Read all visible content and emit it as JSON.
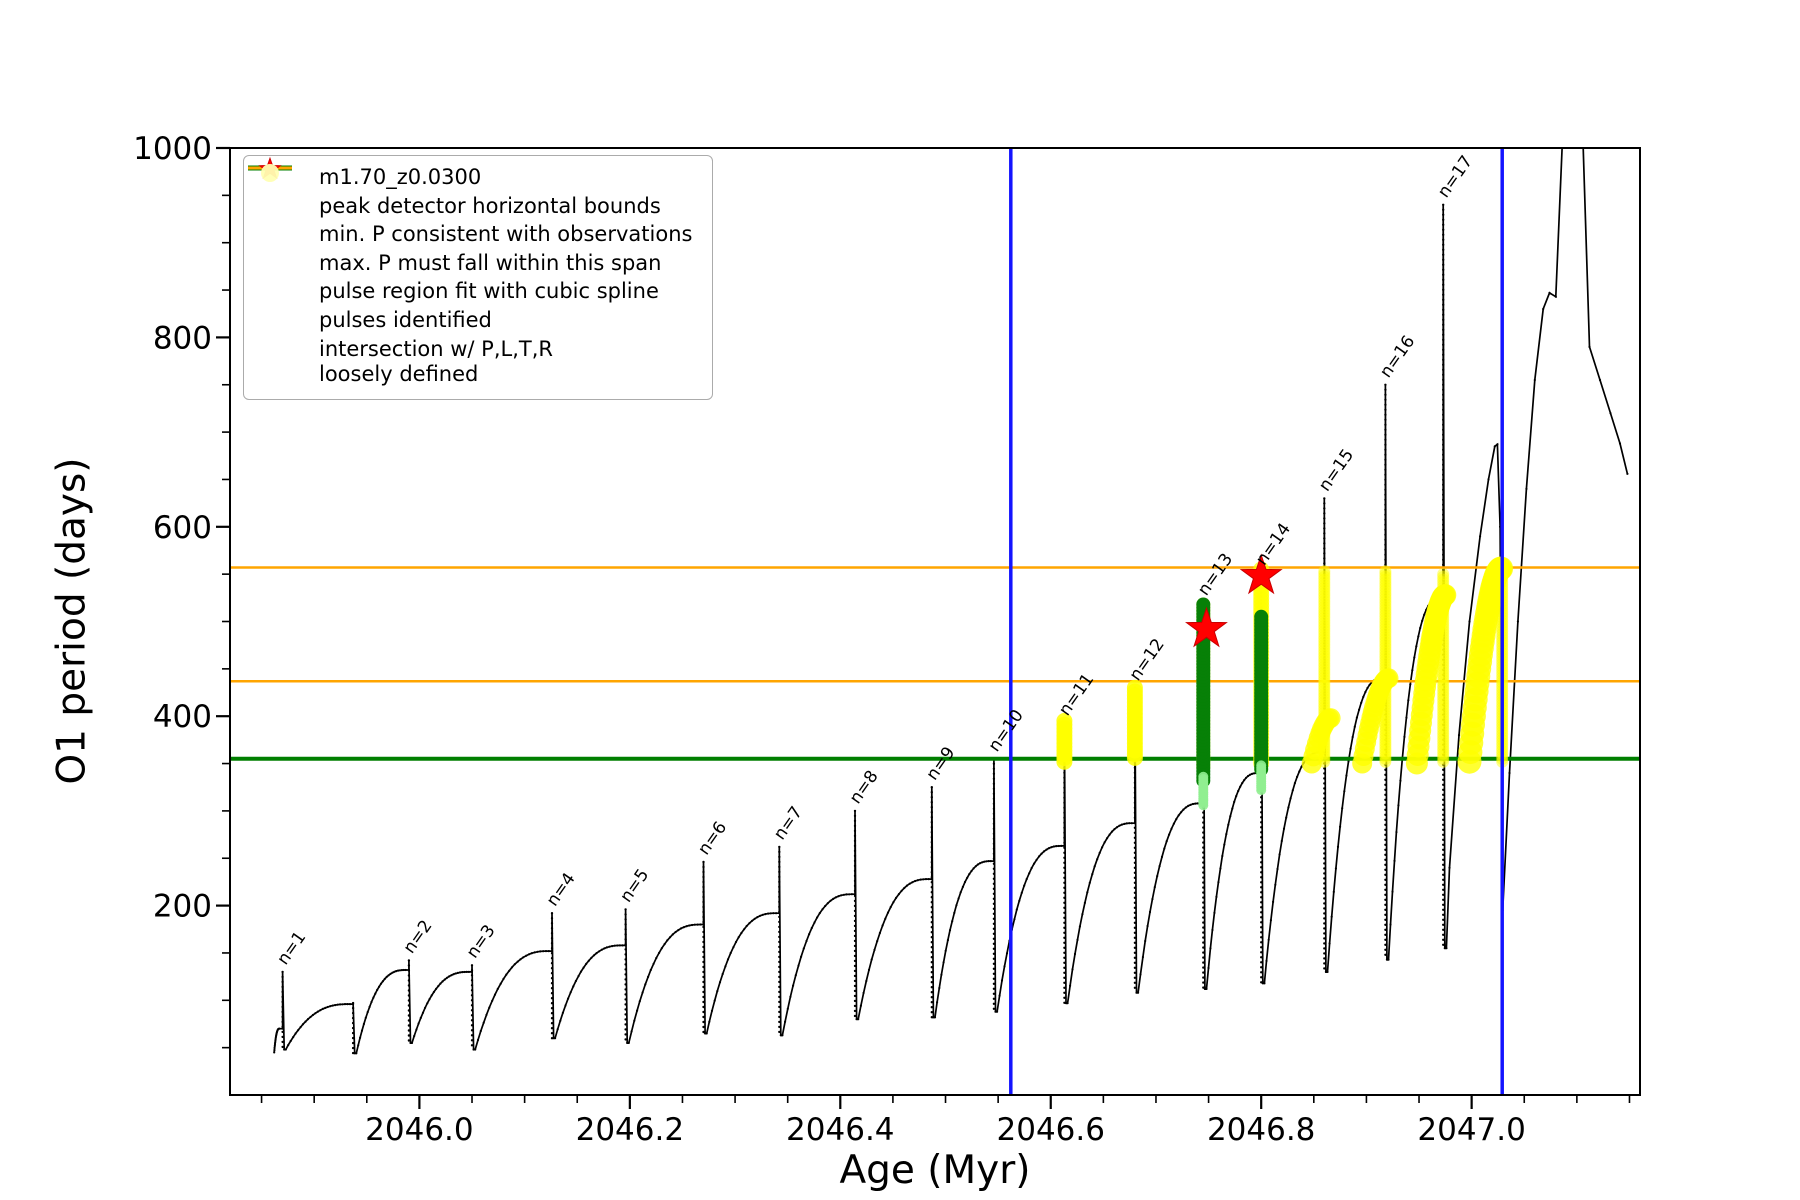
{
  "figure": {
    "xlabel": "Age (Myr)",
    "ylabel": "O1 period (days)"
  },
  "legend": {
    "items": [
      {
        "label": "m1.70_z0.0300",
        "marker": "line-with-dot",
        "color": "#000000"
      },
      {
        "label": "peak detector horizontal bounds",
        "marker": "thick-line",
        "color": "#1414ff"
      },
      {
        "label": "min. P consistent with observations",
        "marker": "thick-line",
        "color": "#007f00"
      },
      {
        "label": "max. P must fall within this span",
        "marker": "line",
        "color": "#ffa500"
      },
      {
        "label": "pulse region fit with cubic spline",
        "marker": "small-dot",
        "color": "#90ee90"
      },
      {
        "label": "pulses identified",
        "marker": "star",
        "color": "#ff0000"
      },
      {
        "label": "intersection w/ P,L,T,R",
        "label2": "loosely defined",
        "marker": "big-dot",
        "color": "#ffffb3"
      }
    ]
  },
  "colors": {
    "blue": "#1414ff",
    "green": "#007f00",
    "orange": "#ffa500",
    "red": "#ff0000",
    "light_green": "#90ee90",
    "yellow": "#ffff00",
    "pale_yellow": "#ffffb3",
    "black": "#000000"
  },
  "chart_data": {
    "type": "line",
    "title": "",
    "xlabel": "Age (Myr)",
    "ylabel": "O1 period (days)",
    "xlim": [
      2045.82,
      2047.16
    ],
    "ylim": [
      0,
      1000
    ],
    "grid": false,
    "legend_position": "upper-left",
    "x_axis": {
      "major": [
        2046.0,
        2046.2,
        2046.4,
        2046.6,
        2046.8,
        2047.0
      ],
      "labels": [
        "2046.0",
        "2046.2",
        "2046.4",
        "2046.6",
        "2046.8",
        "2047.0"
      ],
      "minor_start": 2045.85,
      "minor_step": 0.05
    },
    "y_axis": {
      "major": [
        200,
        400,
        600,
        800,
        1000
      ],
      "labels": [
        "200",
        "400",
        "600",
        "800",
        "1000"
      ],
      "minor_step": 50
    },
    "series": {
      "name": "m1.70_z0.0300",
      "color": "#000000",
      "start": [
        2045.862,
        45
      ],
      "cycles": [
        {
          "n": 1,
          "x": 2045.87,
          "shoulder": 70,
          "peak": 130,
          "min": 48
        },
        {
          "n": null,
          "x": 2045.937,
          "shoulder": 96,
          "peak": 97,
          "min": 44
        },
        {
          "n": 2,
          "x": 2045.99,
          "shoulder": 132,
          "peak": 142,
          "min": 55
        },
        {
          "n": 3,
          "x": 2046.05,
          "shoulder": 130,
          "peak": 137,
          "min": 48
        },
        {
          "n": 4,
          "x": 2046.126,
          "shoulder": 152,
          "peak": 192,
          "min": 60
        },
        {
          "n": 5,
          "x": 2046.196,
          "shoulder": 158,
          "peak": 196,
          "min": 55
        },
        {
          "n": 6,
          "x": 2046.27,
          "shoulder": 180,
          "peak": 246,
          "min": 65
        },
        {
          "n": 7,
          "x": 2046.342,
          "shoulder": 192,
          "peak": 262,
          "min": 63
        },
        {
          "n": 8,
          "x": 2046.414,
          "shoulder": 212,
          "peak": 300,
          "min": 80
        },
        {
          "n": 9,
          "x": 2046.487,
          "shoulder": 228,
          "peak": 325,
          "min": 82
        },
        {
          "n": 10,
          "x": 2046.546,
          "shoulder": 247,
          "peak": 355,
          "min": 88
        },
        {
          "n": 11,
          "x": 2046.613,
          "shoulder": 263,
          "peak": 393,
          "min": 97
        },
        {
          "n": 12,
          "x": 2046.68,
          "shoulder": 287,
          "peak": 430,
          "min": 108
        },
        {
          "n": 13,
          "x": 2046.745,
          "shoulder": 308,
          "peak": 520,
          "min": 112
        },
        {
          "n": 14,
          "x": 2046.8,
          "shoulder": 340,
          "peak": 552,
          "min": 118
        },
        {
          "n": 15,
          "x": 2046.86,
          "shoulder": 362,
          "peak": 630,
          "min": 130
        },
        {
          "n": 16,
          "x": 2046.918,
          "shoulder": 440,
          "peak": 750,
          "min": 143
        },
        {
          "n": 17,
          "x": 2046.973,
          "shoulder": 525,
          "peak": 940,
          "min": 155
        }
      ],
      "tail": [
        [
          2046.979,
          240
        ],
        [
          2046.988,
          380
        ],
        [
          2046.998,
          500
        ],
        [
          2047.008,
          590
        ],
        [
          2047.016,
          650
        ],
        [
          2047.022,
          685
        ],
        [
          2047.0245,
          687
        ],
        [
          2047.027,
          600
        ],
        [
          2047.0295,
          195
        ],
        [
          2047.036,
          340
        ],
        [
          2047.044,
          500
        ],
        [
          2047.052,
          640
        ],
        [
          2047.06,
          755
        ],
        [
          2047.068,
          830
        ],
        [
          2047.074,
          847
        ],
        [
          2047.08,
          843
        ],
        [
          2047.086,
          1000
        ],
        [
          2047.106,
          1000
        ],
        [
          2047.112,
          790
        ],
        [
          2047.122,
          755
        ],
        [
          2047.132,
          720
        ],
        [
          2047.141,
          688
        ],
        [
          2047.148,
          656
        ]
      ]
    },
    "annotations": [
      {
        "label": "n=1",
        "x": 2045.87,
        "y": 130
      },
      {
        "label": "n=2",
        "x": 2045.99,
        "y": 142
      },
      {
        "label": "n=3",
        "x": 2046.05,
        "y": 137
      },
      {
        "label": "n=4",
        "x": 2046.126,
        "y": 192
      },
      {
        "label": "n=5",
        "x": 2046.196,
        "y": 196
      },
      {
        "label": "n=6",
        "x": 2046.27,
        "y": 246
      },
      {
        "label": "n=7",
        "x": 2046.342,
        "y": 262
      },
      {
        "label": "n=8",
        "x": 2046.414,
        "y": 300
      },
      {
        "label": "n=9",
        "x": 2046.487,
        "y": 325
      },
      {
        "label": "n=10",
        "x": 2046.546,
        "y": 355
      },
      {
        "label": "n=11",
        "x": 2046.613,
        "y": 393
      },
      {
        "label": "n=12",
        "x": 2046.68,
        "y": 430
      },
      {
        "label": "n=13",
        "x": 2046.745,
        "y": 520
      },
      {
        "label": "n=14",
        "x": 2046.8,
        "y": 552
      },
      {
        "label": "n=15",
        "x": 2046.86,
        "y": 630
      },
      {
        "label": "n=16",
        "x": 2046.918,
        "y": 750
      },
      {
        "label": "n=17",
        "x": 2046.973,
        "y": 940
      }
    ],
    "vlines": {
      "label": "peak detector horizontal bounds",
      "color": "#1414ff",
      "x": [
        2046.562,
        2047.029
      ]
    },
    "hlines": [
      {
        "label": "min. P consistent with observations",
        "color": "#007f00",
        "y": [
          355
        ],
        "width": 4
      },
      {
        "label": "max. P must fall within this span",
        "color": "#ffa500",
        "y": [
          437,
          557
        ],
        "width": 2.5
      }
    ],
    "spline_fit": {
      "label": "pulse region fit with cubic spline",
      "clusters": [
        {
          "x": 2046.745,
          "y1": 332,
          "y2": 518,
          "r": 7,
          "color": "#078007",
          "opacity": 1
        },
        {
          "x": 2046.8,
          "y1": 344,
          "y2": 505,
          "r": 7,
          "color": "#078007",
          "opacity": 1
        },
        {
          "x": 2046.745,
          "y1": 306,
          "y2": 336,
          "r": 5,
          "color": "#90ee90",
          "opacity": 0.9
        },
        {
          "x": 2046.8,
          "y1": 322,
          "y2": 348,
          "r": 5,
          "color": "#90ee90",
          "opacity": 0.9
        }
      ]
    },
    "pulses_identified": {
      "label": "pulses identified",
      "color": "#ff0000",
      "points": [
        {
          "x": 2046.748,
          "y": 492
        },
        {
          "x": 2046.8,
          "y": 548
        }
      ]
    },
    "intersections": {
      "label": "intersection w/ P,L,T,R loosely defined",
      "color": "#ffff00",
      "streaks": [
        {
          "x": 2046.613,
          "y1": 352,
          "y2": 395,
          "r": 8,
          "opacity": 0.85
        },
        {
          "x": 2046.68,
          "y1": 356,
          "y2": 430,
          "r": 8,
          "opacity": 0.85
        },
        {
          "x": 2046.745,
          "y1": 346,
          "y2": 518,
          "r": 7,
          "opacity": 0.7
        },
        {
          "x": 2046.8,
          "y1": 350,
          "y2": 555,
          "r": 8,
          "opacity": 0.7
        },
        {
          "x": 2046.86,
          "y1": 352,
          "y2": 553,
          "r": 6,
          "opacity": 0.5
        },
        {
          "x": 2046.918,
          "y1": 352,
          "y2": 553,
          "r": 6,
          "opacity": 0.5
        },
        {
          "x": 2046.973,
          "y1": 352,
          "y2": 550,
          "r": 6,
          "opacity": 0.45
        },
        {
          "x": 2047.029,
          "y1": 352,
          "y2": 553,
          "r": 6,
          "opacity": 0.45
        }
      ],
      "arcs": [
        {
          "x1": 2046.848,
          "y1": 350,
          "x2": 2046.866,
          "y2": 398,
          "r": 10,
          "opacity": 0.8
        },
        {
          "x1": 2046.896,
          "y1": 350,
          "x2": 2046.921,
          "y2": 440,
          "r": 10,
          "opacity": 0.8
        },
        {
          "x1": 2046.948,
          "y1": 350,
          "x2": 2046.975,
          "y2": 528,
          "r": 11,
          "opacity": 0.8
        },
        {
          "x1": 2046.998,
          "y1": 352,
          "x2": 2047.028,
          "y2": 556,
          "r": 12,
          "opacity": 0.8
        }
      ]
    }
  }
}
